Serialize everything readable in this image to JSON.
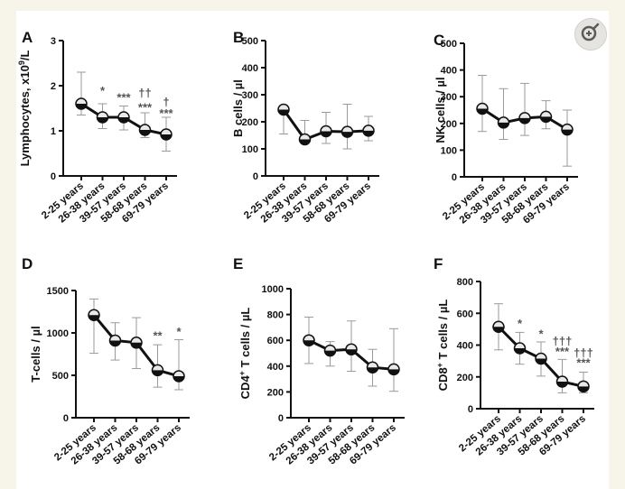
{
  "zoom_button": {
    "icon": "zoom-in-icon"
  },
  "colors": {
    "line": "#111111",
    "errorbar": "#9a9a9a",
    "marker_fill": "#e9e9e9",
    "significance": "#555555"
  },
  "chart_data": [
    {
      "panel": "A",
      "type": "line",
      "categories": [
        "2-25 years",
        "26-38 years",
        "39-57 years",
        "58-68 years",
        "69-79 years"
      ],
      "ylabel": "Lymphocytes, x10",
      "ylabel_sup": "9",
      "ylabel_tail": "/L",
      "ylim": [
        0,
        3
      ],
      "yticks": [
        0,
        1,
        2,
        3
      ],
      "ytick_labels": [
        "0",
        "1",
        "2",
        "3"
      ],
      "grid": false,
      "values": [
        1.6,
        1.3,
        1.3,
        1.02,
        0.92
      ],
      "err_low": [
        1.35,
        1.05,
        1.02,
        0.85,
        0.55
      ],
      "err_high": [
        2.3,
        1.6,
        1.55,
        1.4,
        1.3
      ],
      "annotations": [
        {
          "x": "26-38 years",
          "y": 1.8,
          "text": "*"
        },
        {
          "x": "39-57 years",
          "y": 1.65,
          "text": "***"
        },
        {
          "x": "58-68 years",
          "y": 1.75,
          "text": "††"
        },
        {
          "x": "58-68 years",
          "y": 1.43,
          "text": "***"
        },
        {
          "x": "69-79 years",
          "y": 1.55,
          "text": "†"
        },
        {
          "x": "69-79 years",
          "y": 1.3,
          "text": "***"
        }
      ]
    },
    {
      "panel": "B",
      "type": "line",
      "categories": [
        "2-25 years",
        "26-38 years",
        "39-57 years",
        "58-68 years",
        "69-79 years"
      ],
      "ylabel": "B cells / µl",
      "ylim": [
        0,
        500
      ],
      "yticks": [
        0,
        100,
        200,
        300,
        400,
        500
      ],
      "ytick_labels": [
        "0",
        "100",
        "200",
        "300",
        "400",
        "500"
      ],
      "grid": false,
      "values": [
        245,
        135,
        165,
        163,
        167
      ],
      "err_low": [
        155,
        125,
        120,
        100,
        130
      ],
      "err_high": [
        260,
        205,
        235,
        265,
        220
      ],
      "annotations": []
    },
    {
      "panel": "C",
      "type": "line",
      "categories": [
        "2-25 years",
        "26-38 years",
        "39-57 years",
        "58-68 years",
        "69-79 years"
      ],
      "ylabel": "NK cells / µl",
      "ylim": [
        0,
        500
      ],
      "yticks": [
        0,
        100,
        200,
        300,
        400,
        500
      ],
      "ytick_labels": [
        "0",
        "100",
        "200",
        "300",
        "400",
        "500"
      ],
      "grid": false,
      "values": [
        255,
        203,
        220,
        225,
        177
      ],
      "err_low": [
        170,
        140,
        155,
        180,
        40
      ],
      "err_high": [
        380,
        330,
        350,
        285,
        250
      ],
      "annotations": []
    },
    {
      "panel": "D",
      "type": "line",
      "categories": [
        "2-25 years",
        "26-38 years",
        "39-57 years",
        "58-68 years",
        "69-79 years"
      ],
      "ylabel": "T-cells / µl",
      "ylim": [
        0,
        1500
      ],
      "yticks": [
        0,
        500,
        1000,
        1500
      ],
      "ytick_labels": [
        "0",
        "500",
        "1000",
        "1500"
      ],
      "grid": false,
      "values": [
        1210,
        910,
        885,
        560,
        490
      ],
      "err_low": [
        760,
        680,
        580,
        360,
        330
      ],
      "err_high": [
        1400,
        1120,
        1180,
        860,
        920
      ],
      "annotations": [
        {
          "x": "58-68 years",
          "y": 920,
          "text": "**"
        },
        {
          "x": "69-79 years",
          "y": 970,
          "text": "*"
        }
      ]
    },
    {
      "panel": "E",
      "type": "line",
      "categories": [
        "2-25 years",
        "26-38 years",
        "39-57 years",
        "58-68 years",
        "69-79 years"
      ],
      "ylabel": "CD4",
      "ylabel_sup": "+",
      "ylabel_tail": " T cells / µL",
      "ylim": [
        0,
        1000
      ],
      "yticks": [
        0,
        200,
        400,
        600,
        800,
        1000
      ],
      "ytick_labels": [
        "0",
        "200",
        "400",
        "600",
        "800",
        "1000"
      ],
      "grid": false,
      "values": [
        600,
        520,
        530,
        390,
        375
      ],
      "err_low": [
        420,
        400,
        360,
        245,
        205
      ],
      "err_high": [
        780,
        590,
        750,
        530,
        690
      ],
      "annotations": []
    },
    {
      "panel": "F",
      "type": "line",
      "categories": [
        "2-25 years",
        "26-38 years",
        "39-57 years",
        "58-68 years",
        "69-79 years"
      ],
      "ylabel": "CD8",
      "ylabel_sup": "+",
      "ylabel_tail": " T cells / µL",
      "ylim": [
        0,
        800
      ],
      "yticks": [
        0,
        200,
        400,
        600,
        800
      ],
      "ytick_labels": [
        "0",
        "200",
        "400",
        "600",
        "800"
      ],
      "grid": false,
      "values": [
        515,
        380,
        315,
        170,
        140
      ],
      "err_low": [
        370,
        280,
        205,
        100,
        100
      ],
      "err_high": [
        660,
        480,
        420,
        310,
        230
      ],
      "annotations": [
        {
          "x": "26-38 years",
          "y": 510,
          "text": "*"
        },
        {
          "x": "39-57 years",
          "y": 445,
          "text": "*"
        },
        {
          "x": "58-68 years",
          "y": 400,
          "text": "†††"
        },
        {
          "x": "58-68 years",
          "y": 335,
          "text": "***"
        },
        {
          "x": "69-79 years",
          "y": 325,
          "text": "†††"
        },
        {
          "x": "69-79 years",
          "y": 265,
          "text": "***"
        }
      ]
    }
  ]
}
